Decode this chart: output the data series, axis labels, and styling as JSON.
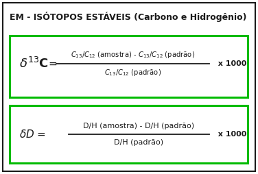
{
  "title": "EM - ISÓTOPOS ESTÁVEIS (Carbono e Hidrogênio)",
  "title_fontsize": 9,
  "title_fontweight": "bold",
  "bg_color": "#ffffff",
  "outer_box_color": "#1a1a1a",
  "inner_box_color": "#00bb00",
  "text_color": "#1a1a1a",
  "formula_fontsize": 8.5,
  "times_text": "x 1000"
}
